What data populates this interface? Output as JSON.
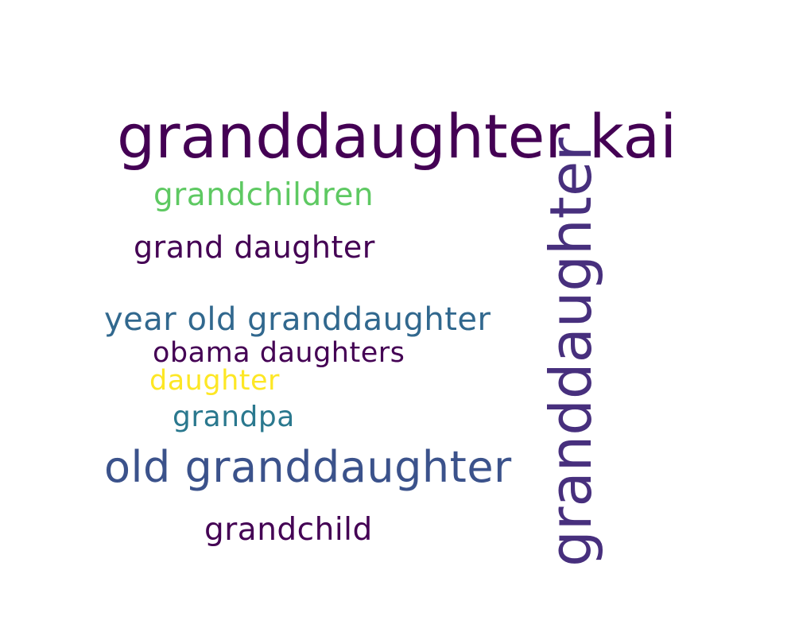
{
  "words": [
    {
      "text": "granddaughter kai",
      "color": "#440154"
    },
    {
      "text": "grandchildren",
      "color": "#5ec962"
    },
    {
      "text": "grand daughter",
      "color": "#440154"
    },
    {
      "text": "year old granddaughter",
      "color": "#31688e"
    },
    {
      "text": "obama daughters",
      "color": "#440154"
    },
    {
      "text": "daughter",
      "color": "#fde725"
    },
    {
      "text": "grandpa",
      "color": "#2a788e"
    },
    {
      "text": "old granddaughter",
      "color": "#3b528b"
    },
    {
      "text": "grandchild",
      "color": "#440154"
    },
    {
      "text": "granddaughter",
      "color": "#472f7d"
    }
  ]
}
